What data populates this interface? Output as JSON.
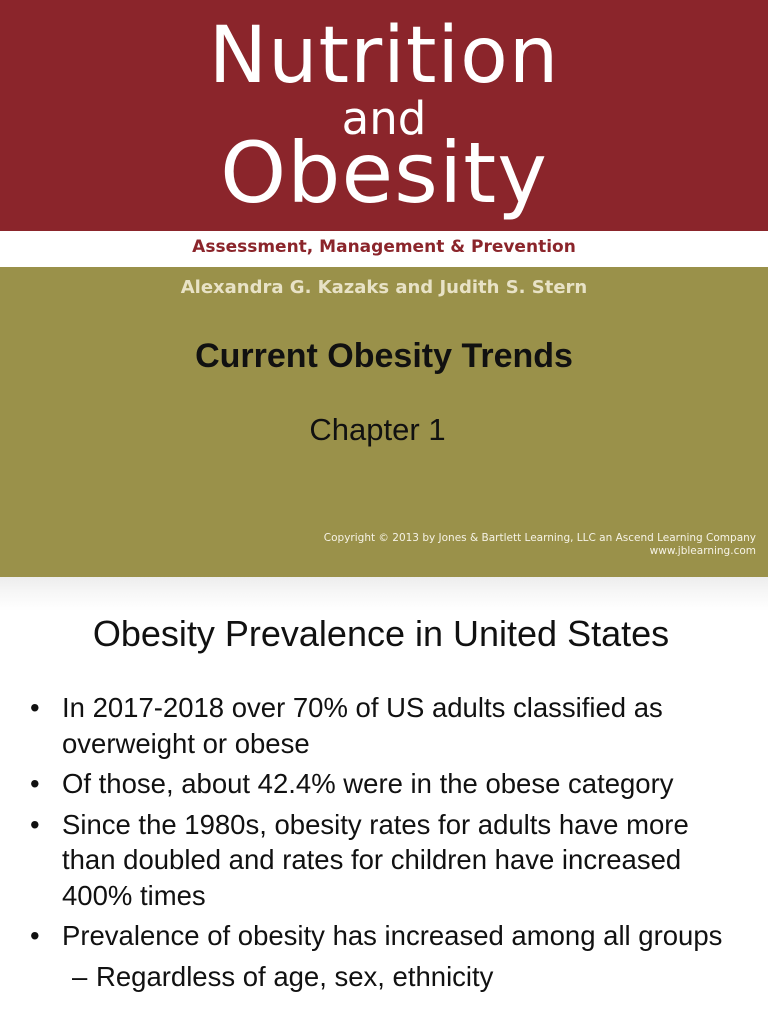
{
  "cover": {
    "brand_line1": "Nutrition",
    "brand_line2": "and",
    "brand_line3": "Obesity",
    "subtitle": "Assessment, Management & Prevention",
    "authors": "Alexandra G. Kazaks and Judith S. Stern",
    "title": "Current Obesity Trends",
    "chapter": "Chapter 1",
    "copyright_line1": "Copyright © 2013 by Jones & Bartlett Learning, LLC an Ascend Learning Company",
    "copyright_line2": "www.jblearning.com"
  },
  "content": {
    "title": "Obesity Prevalence in United States",
    "bullet_symbol": "•",
    "dash_symbol": "–",
    "bullets": [
      "In 2017-2018 over 70% of US adults classified as overweight or obese",
      "Of those, about 42.4% were in the obese category",
      "Since the 1980s, obesity rates for adults have more than doubled and rates for children have increased 400% times",
      "Prevalence of obesity has increased among all groups"
    ],
    "sub_bullets": [
      "Regardless of age, sex, ethnicity"
    ]
  },
  "colors": {
    "brand_red": "#8b252b",
    "olive": "#9a914a"
  }
}
